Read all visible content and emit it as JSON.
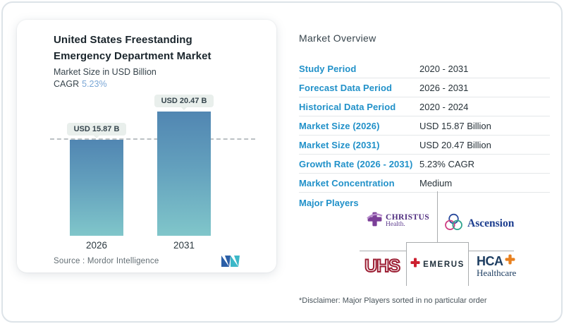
{
  "left_card": {
    "title": "United States Freestanding Emergency Department Market",
    "subtitle": "Market Size in USD Billion",
    "cagr_label": "CAGR",
    "cagr_value": "5.23%",
    "source_label": "Source :  Mordor Intelligence"
  },
  "chart_data": {
    "type": "bar",
    "categories": [
      "2026",
      "2031"
    ],
    "values": [
      15.87,
      20.47
    ],
    "value_labels": [
      "USD 15.87 B",
      "USD 20.47 B"
    ],
    "title": "United States Freestanding Emergency Department Market",
    "subtitle": "Market Size in USD Billion",
    "unit": "USD Billion",
    "ylim": [
      0,
      20.47
    ],
    "grid": false,
    "legend": "none",
    "dashed_reference_line_at": 15.87,
    "bar_gradient_top": "#5186b2",
    "bar_gradient_bottom": "#80c6ca"
  },
  "overview": {
    "heading": "Market Overview",
    "rows": [
      {
        "label": "Study Period",
        "value": "2020 - 2031"
      },
      {
        "label": "Forecast Data Period",
        "value": "2026 - 2031"
      },
      {
        "label": "Historical Data Period",
        "value": "2020 - 2024"
      },
      {
        "label": "Market Size (2026)",
        "value": "USD 15.87 Billion"
      },
      {
        "label": "Market Size (2031)",
        "value": "USD 20.47 Billion"
      },
      {
        "label": "Growth Rate (2026 - 2031)",
        "value": "5.23% CAGR"
      },
      {
        "label": "Market Concentration",
        "value": "Medium"
      }
    ],
    "major_players_label": "Major Players",
    "players": {
      "christus": {
        "line1": "CHRISTUS",
        "line2": "Health."
      },
      "ascension": {
        "name": "Ascension"
      },
      "uhs": {
        "name": "UHS"
      },
      "emerus": {
        "name": "EMERUS"
      },
      "hca": {
        "line1": "HCA",
        "line2": "Healthcare"
      }
    },
    "disclaimer": "*Disclaimer: Major Players sorted in no particular order"
  },
  "icons": {
    "mordor_logo": "mordor-intelligence-logo",
    "christus_cross": "purple-cross-icon",
    "ascension_knot": "trinity-knot-icon",
    "emerus_cross": "red-cross-icon",
    "hca_cross": "orange-cross-icon"
  },
  "colors": {
    "accent_blue_label": "#2191c9",
    "cagr_value_blue": "#7aa7d6",
    "bar_top": "#5186b2",
    "bar_bottom": "#80c6ca",
    "pill_bg": "#e9efec",
    "divider": "#e4e7e9",
    "diagram_line": "#a9acae"
  }
}
